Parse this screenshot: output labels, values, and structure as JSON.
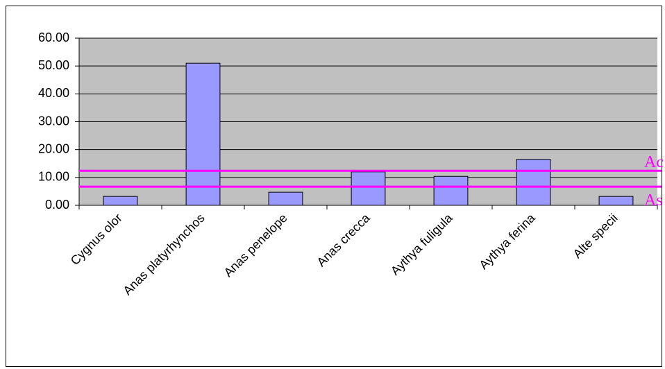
{
  "chart_data": {
    "type": "bar",
    "categories": [
      "Cygnus olor",
      "Anas platyrhynchos",
      "Anas penelope",
      "Anas crecca",
      "Aythya fuligula",
      "Aythya ferina",
      "Alte specii"
    ],
    "values": [
      3.2,
      51,
      4.7,
      12,
      10.4,
      16.5,
      3.2
    ],
    "color": "#9999ff",
    "ylim": [
      0,
      60
    ],
    "yticks": [
      {
        "value": 0,
        "label": "0.00"
      },
      {
        "value": 10,
        "label": "10.00"
      },
      {
        "value": 20,
        "label": "20.00"
      },
      {
        "value": 30,
        "label": "30.00"
      },
      {
        "value": 40,
        "label": "40.00"
      },
      {
        "value": 50,
        "label": "50.00"
      },
      {
        "value": 60,
        "label": "60.00"
      }
    ],
    "grid": true,
    "reference_lines": [
      {
        "label": "Ac",
        "value": 12.4,
        "color": "#ff00ff"
      },
      {
        "label": "As",
        "value": 6.7,
        "color": "#ff00ff"
      }
    ]
  }
}
